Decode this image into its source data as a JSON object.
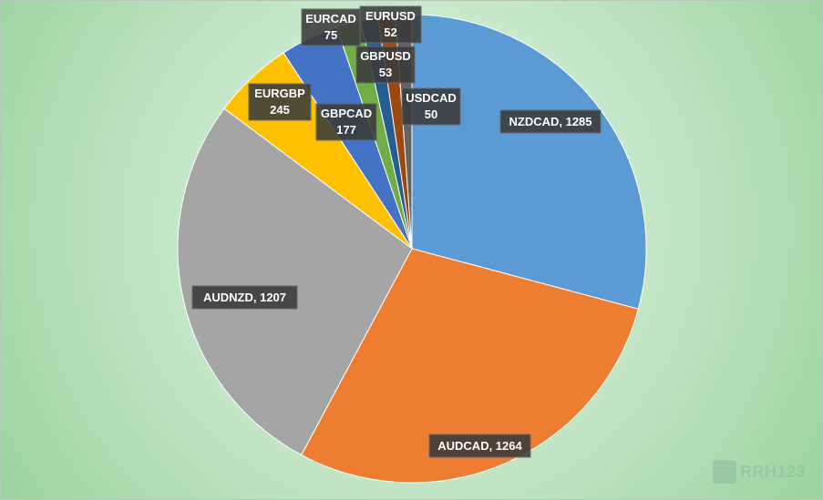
{
  "chart_data": {
    "type": "pie",
    "title": "",
    "legend": "none",
    "slices": [
      {
        "label": "NZDCAD",
        "value": 1285,
        "color": "#5b9bd5",
        "label_line_1": "NZDCAD, 1285",
        "label_line_2": ""
      },
      {
        "label": "AUDCAD",
        "value": 1264,
        "color": "#ed7d31",
        "label_line_1": "AUDCAD, 1264",
        "label_line_2": ""
      },
      {
        "label": "AUDNZD",
        "value": 1207,
        "color": "#a5a5a5",
        "label_line_1": "AUDNZD, 1207",
        "label_line_2": ""
      },
      {
        "label": "EURGBP",
        "value": 245,
        "color": "#ffc000",
        "label_line_1": "EURGBP",
        "label_line_2": "245"
      },
      {
        "label": "GBPCAD",
        "value": 177,
        "color": "#4472c4",
        "label_line_1": "GBPCAD",
        "label_line_2": "177"
      },
      {
        "label": "EURCAD",
        "value": 75,
        "color": "#70ad47",
        "label_line_1": "EURCAD",
        "label_line_2": "75"
      },
      {
        "label": "GBPUSD",
        "value": 53,
        "color": "#255e91",
        "label_line_1": "GBPUSD",
        "label_line_2": "53"
      },
      {
        "label": "EURUSD",
        "value": 52,
        "color": "#9e480e",
        "label_line_1": "EURUSD",
        "label_line_2": "52"
      },
      {
        "label": "USDCAD",
        "value": 50,
        "color": "#636363",
        "label_line_1": "USDCAD",
        "label_line_2": "50"
      }
    ]
  },
  "watermark": {
    "text": "RRH123"
  }
}
